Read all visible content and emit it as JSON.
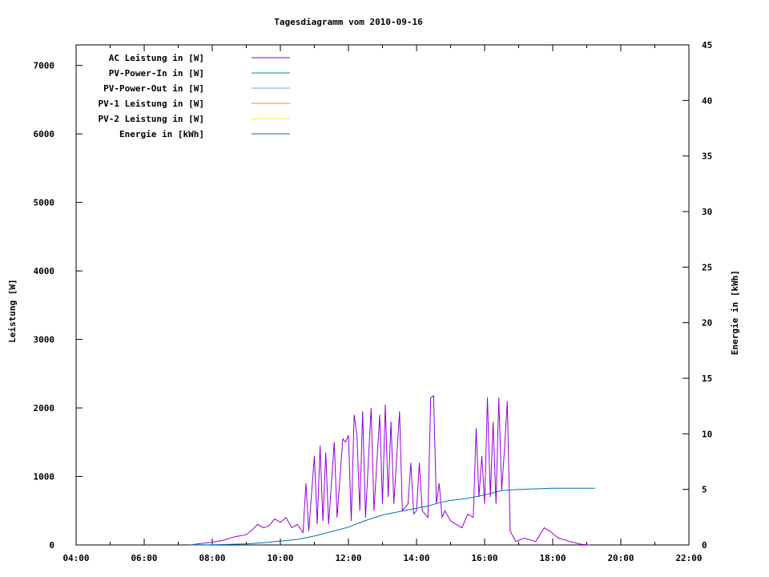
{
  "chart_data": {
    "type": "line",
    "title": "Tagesdiagramm vom 2010-09-16",
    "xlabel": "",
    "ylabel": "Leistung [W]",
    "y2label": "Energie in [kWh]",
    "x_ticks": [
      "04:00",
      "06:00",
      "08:00",
      "10:00",
      "12:00",
      "14:00",
      "16:00",
      "18:00",
      "20:00",
      "22:00"
    ],
    "y_ticks": [
      "0",
      "1000",
      "2000",
      "3000",
      "4000",
      "5000",
      "6000",
      "7000"
    ],
    "y2_ticks": [
      "0",
      "5",
      "10",
      "15",
      "20",
      "25",
      "30",
      "35",
      "40",
      "45"
    ],
    "xlim": [
      "04:00",
      "22:00"
    ],
    "ylim": [
      0,
      7300
    ],
    "y2lim": [
      0,
      45
    ],
    "grid": false,
    "legend_position": "top-left",
    "series": [
      {
        "name": "AC Leistung in [W]",
        "color": "#9400d3",
        "axis": "y",
        "points": [
          [
            "07:20",
            0
          ],
          [
            "07:40",
            20
          ],
          [
            "08:00",
            40
          ],
          [
            "08:20",
            70
          ],
          [
            "08:40",
            120
          ],
          [
            "09:00",
            150
          ],
          [
            "09:10",
            220
          ],
          [
            "09:20",
            300
          ],
          [
            "09:30",
            250
          ],
          [
            "09:40",
            280
          ],
          [
            "09:50",
            380
          ],
          [
            "10:00",
            330
          ],
          [
            "10:10",
            400
          ],
          [
            "10:20",
            250
          ],
          [
            "10:30",
            300
          ],
          [
            "10:40",
            180
          ],
          [
            "10:45",
            900
          ],
          [
            "10:50",
            200
          ],
          [
            "11:00",
            1300
          ],
          [
            "11:05",
            300
          ],
          [
            "11:10",
            1450
          ],
          [
            "11:15",
            350
          ],
          [
            "11:20",
            1350
          ],
          [
            "11:25",
            300
          ],
          [
            "11:35",
            1500
          ],
          [
            "11:40",
            400
          ],
          [
            "11:50",
            1550
          ],
          [
            "11:55",
            1500
          ],
          [
            "12:00",
            1600
          ],
          [
            "12:05",
            350
          ],
          [
            "12:10",
            1900
          ],
          [
            "12:15",
            1600
          ],
          [
            "12:20",
            500
          ],
          [
            "12:25",
            1950
          ],
          [
            "12:30",
            400
          ],
          [
            "12:40",
            2000
          ],
          [
            "12:45",
            500
          ],
          [
            "12:55",
            1900
          ],
          [
            "13:00",
            600
          ],
          [
            "13:05",
            2050
          ],
          [
            "13:10",
            700
          ],
          [
            "13:15",
            1800
          ],
          [
            "13:20",
            600
          ],
          [
            "13:30",
            1950
          ],
          [
            "13:35",
            500
          ],
          [
            "13:45",
            600
          ],
          [
            "13:50",
            1200
          ],
          [
            "13:55",
            450
          ],
          [
            "14:00",
            500
          ],
          [
            "14:05",
            1200
          ],
          [
            "14:10",
            500
          ],
          [
            "14:15",
            450
          ],
          [
            "14:20",
            400
          ],
          [
            "14:25",
            2150
          ],
          [
            "14:30",
            2180
          ],
          [
            "14:35",
            600
          ],
          [
            "14:40",
            900
          ],
          [
            "14:45",
            400
          ],
          [
            "14:50",
            500
          ],
          [
            "15:00",
            350
          ],
          [
            "15:10",
            300
          ],
          [
            "15:20",
            250
          ],
          [
            "15:30",
            450
          ],
          [
            "15:40",
            400
          ],
          [
            "15:45",
            1700
          ],
          [
            "15:50",
            700
          ],
          [
            "15:55",
            1300
          ],
          [
            "16:00",
            600
          ],
          [
            "16:05",
            2150
          ],
          [
            "16:10",
            700
          ],
          [
            "16:15",
            1800
          ],
          [
            "16:20",
            600
          ],
          [
            "16:25",
            2150
          ],
          [
            "16:30",
            800
          ],
          [
            "16:35",
            1400
          ],
          [
            "16:40",
            2100
          ],
          [
            "16:45",
            200
          ],
          [
            "16:55",
            50
          ],
          [
            "17:10",
            100
          ],
          [
            "17:30",
            50
          ],
          [
            "17:45",
            250
          ],
          [
            "17:55",
            200
          ],
          [
            "18:10",
            100
          ],
          [
            "18:30",
            50
          ],
          [
            "18:50",
            10
          ],
          [
            "19:05",
            0
          ]
        ]
      },
      {
        "name": "PV-Power-In in [W]",
        "color": "#009e73",
        "axis": "y",
        "points": []
      },
      {
        "name": "PV-Power-Out in [W]",
        "color": "#56b4e9",
        "axis": "y",
        "points": []
      },
      {
        "name": "PV-1 Leistung in [W]",
        "color": "#e69f00",
        "axis": "y",
        "points": []
      },
      {
        "name": "PV-2 Leistung in [W]",
        "color": "#f0e442",
        "axis": "y",
        "points": []
      },
      {
        "name": "Energie in [kWh]",
        "color": "#0072b2",
        "axis": "y2",
        "points": [
          [
            "07:20",
            0
          ],
          [
            "08:00",
            0.02
          ],
          [
            "08:30",
            0.05
          ],
          [
            "09:00",
            0.1
          ],
          [
            "09:30",
            0.2
          ],
          [
            "10:00",
            0.35
          ],
          [
            "10:30",
            0.5
          ],
          [
            "11:00",
            0.8
          ],
          [
            "11:30",
            1.2
          ],
          [
            "12:00",
            1.6
          ],
          [
            "12:30",
            2.2
          ],
          [
            "13:00",
            2.7
          ],
          [
            "13:30",
            3.0
          ],
          [
            "14:00",
            3.3
          ],
          [
            "14:20",
            3.5
          ],
          [
            "14:40",
            3.8
          ],
          [
            "15:00",
            4.0
          ],
          [
            "15:30",
            4.2
          ],
          [
            "16:00",
            4.5
          ],
          [
            "16:30",
            4.9
          ],
          [
            "17:00",
            5.0
          ],
          [
            "17:30",
            5.05
          ],
          [
            "18:00",
            5.1
          ],
          [
            "19:00",
            5.1
          ],
          [
            "19:15",
            5.1
          ]
        ]
      }
    ]
  }
}
